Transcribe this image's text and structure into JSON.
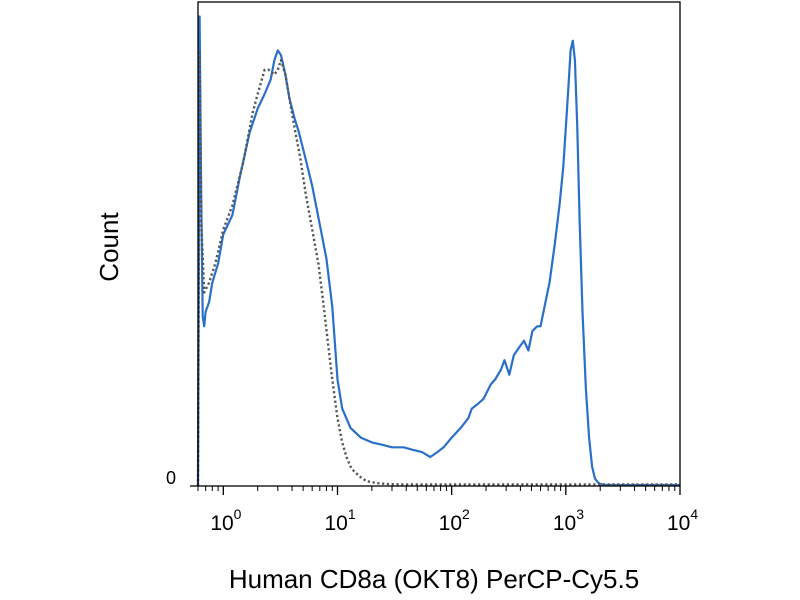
{
  "chart_data": {
    "type": "line",
    "title": "",
    "xlabel": "Human CD8a (OKT8) PerCP-Cy5.5",
    "ylabel": "Count",
    "x_scale": "log",
    "xlim": [
      0.6,
      10000
    ],
    "ylim": [
      0,
      100
    ],
    "x_ticks": [
      {
        "value": 1,
        "base": "10",
        "exp": "0"
      },
      {
        "value": 10,
        "base": "10",
        "exp": "1"
      },
      {
        "value": 100,
        "base": "10",
        "exp": "2"
      },
      {
        "value": 1000,
        "base": "10",
        "exp": "3"
      },
      {
        "value": 10000,
        "base": "10",
        "exp": "4"
      }
    ],
    "y_ticks": [
      {
        "value": 0,
        "label": "0"
      }
    ],
    "grid": false,
    "legend": "none",
    "series": [
      {
        "color": "#2a70c8",
        "dash": "solid",
        "x": [
          0.6,
          0.62,
          0.64,
          0.66,
          0.68,
          0.7,
          0.75,
          0.8,
          0.9,
          1.0,
          1.2,
          1.4,
          1.7,
          2.0,
          2.3,
          2.6,
          2.8,
          3.0,
          3.2,
          3.5,
          3.8,
          4.2,
          4.6,
          5.2,
          6.0,
          7.0,
          8.0,
          9.0,
          10,
          11,
          13,
          16,
          20,
          25,
          30,
          38,
          45,
          55,
          65,
          75,
          85,
          100,
          120,
          140,
          150,
          170,
          190,
          220,
          240,
          270,
          290,
          320,
          350,
          400,
          430,
          470,
          510,
          560,
          600,
          650,
          720,
          800,
          880,
          950,
          1000,
          1050,
          1100,
          1150,
          1200,
          1260,
          1320,
          1400,
          1500,
          1600,
          1700,
          1800,
          1900,
          2000,
          2100,
          2200,
          2400,
          3000,
          4000,
          6000,
          10000
        ],
        "y": [
          0,
          97,
          60,
          35,
          33,
          36,
          38,
          42,
          46,
          52,
          56,
          64,
          73,
          78,
          81,
          84,
          88,
          90,
          89,
          85,
          80,
          76,
          73,
          68,
          62,
          54,
          47,
          37,
          22,
          16,
          12,
          10,
          9,
          8.5,
          8,
          8,
          7.5,
          7,
          6,
          7,
          8,
          10,
          12,
          14,
          16,
          17,
          18,
          21,
          22,
          24,
          26,
          23,
          27,
          29,
          30,
          28,
          32,
          33,
          33,
          37,
          42,
          50,
          58,
          66,
          74,
          82,
          90,
          92,
          88,
          74,
          55,
          36,
          20,
          10,
          4,
          1.5,
          0.8,
          0.4,
          0.3,
          0.2,
          0.2,
          0.2,
          0.2,
          0.2,
          0.2
        ]
      },
      {
        "color": "#555555",
        "dash": "dotted",
        "x": [
          0.6,
          0.62,
          0.64,
          0.68,
          0.75,
          0.85,
          1.0,
          1.2,
          1.5,
          1.8,
          2.0,
          2.3,
          2.5,
          2.8,
          3.0,
          3.2,
          3.5,
          3.8,
          4.2,
          4.7,
          5.3,
          6.0,
          6.8,
          7.5,
          8.2,
          9.0,
          10,
          11,
          12,
          13,
          14,
          16,
          18,
          22,
          28,
          40,
          60,
          100,
          200,
          500,
          1000,
          3000,
          10000
        ],
        "y": [
          0,
          90,
          55,
          40,
          42,
          46,
          53,
          58,
          67,
          77,
          81,
          86,
          86,
          85,
          86,
          88,
          85,
          80,
          74,
          68,
          60,
          53,
          46,
          38,
          30,
          22,
          14,
          9,
          6,
          4,
          3,
          1.8,
          1,
          0.6,
          0.4,
          0.3,
          0.3,
          0.3,
          0.3,
          0.3,
          0.3,
          0.3,
          0.3
        ]
      }
    ]
  }
}
